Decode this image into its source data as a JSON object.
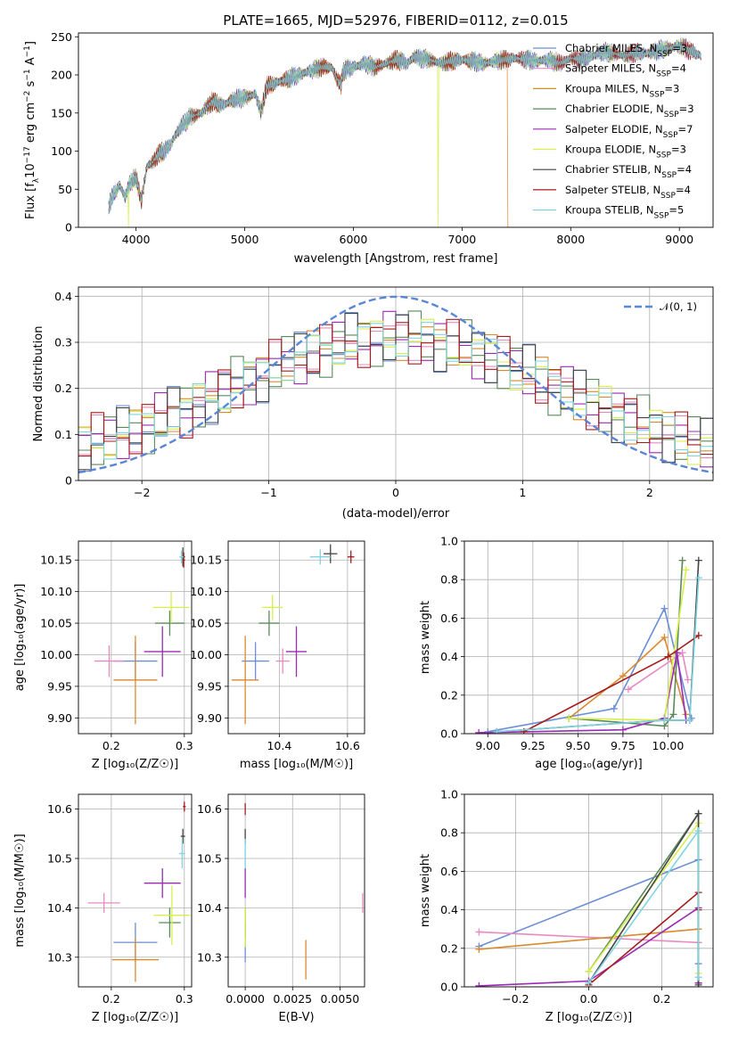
{
  "chart_data": [
    {
      "id": "spectrum",
      "type": "line",
      "title": "PLATE=1665, MJD=52976, FIBERID=0112, z=0.015",
      "xlabel": "wavelength [Angstrom, rest frame]",
      "ylabel_parts": [
        "Flux [f",
        "λ",
        "10",
        "−17",
        " erg cm",
        "−2",
        " s",
        "−1",
        " A",
        "−1",
        "]"
      ],
      "xlim": [
        3470,
        9310
      ],
      "ylim": [
        0,
        255
      ],
      "xticks": [
        4000,
        5000,
        6000,
        7000,
        8000,
        9000
      ],
      "yticks": [
        0,
        50,
        100,
        150,
        200,
        250
      ],
      "legend_position": "upper-right",
      "series": [
        {
          "name": "Chabrier MILES, N",
          "sub": "SSP",
          "suffix": "=3",
          "color": "#6a8fd6"
        },
        {
          "name": "Salpeter MILES, N",
          "sub": "SSP",
          "suffix": "=4",
          "color": "#e88ac1"
        },
        {
          "name": "Kroupa MILES, N",
          "sub": "SSP",
          "suffix": "=3",
          "color": "#d98a2e"
        },
        {
          "name": "Chabrier ELODIE, N",
          "sub": "SSP",
          "suffix": "=3",
          "color": "#5a8a5a"
        },
        {
          "name": "Salpeter ELODIE, N",
          "sub": "SSP",
          "suffix": "=7",
          "color": "#9b2ab5"
        },
        {
          "name": "Kroupa ELODIE, N",
          "sub": "SSP",
          "suffix": "=3",
          "color": "#d8ee4a"
        },
        {
          "name": "Chabrier STELIB, N",
          "sub": "SSP",
          "suffix": "=4",
          "color": "#444444"
        },
        {
          "name": "Salpeter STELIB, N",
          "sub": "SSP",
          "suffix": "=4",
          "color": "#a51c1c"
        },
        {
          "name": "Kroupa STELIB, N",
          "sub": "SSP",
          "suffix": "=5",
          "color": "#7fd4e0"
        }
      ],
      "spectrum_x": [
        3750,
        3800,
        3850,
        3900,
        3950,
        4000,
        4050,
        4100,
        4150,
        4200,
        4300,
        4400,
        4500,
        4600,
        4700,
        4800,
        4900,
        5000,
        5100,
        5150,
        5200,
        5300,
        5400,
        5500,
        5600,
        5700,
        5800,
        5850,
        5890,
        5900,
        6000,
        6100,
        6200,
        6300,
        6400,
        6500,
        6563,
        6600,
        6700,
        6800,
        6900,
        7000,
        7100,
        7200,
        7300,
        7400,
        7500,
        7600,
        7700,
        7800,
        7900,
        8000,
        8100,
        8200,
        8300,
        8400,
        8500,
        8600,
        8700,
        8800,
        8900,
        9000,
        9100,
        9200
      ],
      "spectrum_y": [
        30,
        45,
        55,
        40,
        60,
        65,
        35,
        80,
        85,
        95,
        105,
        130,
        145,
        150,
        165,
        160,
        168,
        170,
        175,
        150,
        185,
        190,
        195,
        200,
        205,
        210,
        210,
        195,
        185,
        205,
        210,
        215,
        210,
        215,
        220,
        215,
        225,
        222,
        220,
        215,
        218,
        220,
        218,
        215,
        218,
        220,
        222,
        220,
        218,
        220,
        215,
        222,
        220,
        225,
        230,
        228,
        225,
        230,
        228,
        232,
        235,
        238,
        232,
        225
      ],
      "cutoffs": [
        {
          "x": 3930,
          "series": 5
        },
        {
          "x": 6780,
          "series": 5
        },
        {
          "x": 7420,
          "series": 2
        }
      ]
    },
    {
      "id": "residuals",
      "type": "histogram",
      "xlabel": "(data-model)/error",
      "ylabel": "Normed distribution",
      "xlim": [
        -2.5,
        2.5
      ],
      "ylim": [
        0,
        0.42
      ],
      "xticks": [
        -2,
        -1,
        0,
        1,
        2
      ],
      "yticks": [
        0.0,
        0.1,
        0.2,
        0.3,
        0.4
      ],
      "legend": {
        "label": "𝒩(0, 1)",
        "position": "upper-right"
      },
      "gaussian_color": "#5b86d8",
      "bin_width": 0.1
    },
    {
      "id": "age_vs_Z",
      "type": "errorbar",
      "xlabel": "Z [log₁₀(Z/Z☉)]",
      "ylabel": "age  [log₁₀(age/yr)]",
      "xlim": [
        0.155,
        0.31
      ],
      "ylim": [
        9.875,
        10.18
      ],
      "xticks": [
        0.2,
        0.3
      ],
      "xtick_labels": [
        "0.2",
        "0.3"
      ],
      "yticks": [
        9.9,
        9.95,
        10.0,
        10.05,
        10.1,
        10.15
      ],
      "ytick_labels": [
        "9.90",
        "9.95",
        "10.00",
        "10.05",
        "10.10",
        "10.15"
      ],
      "points": [
        {
          "x": 0.233,
          "xerr": 0.03,
          "y": 9.99,
          "yerr": 0.03,
          "color": "#6a8fd6"
        },
        {
          "x": 0.197,
          "xerr": 0.02,
          "y": 9.99,
          "yerr": 0.025,
          "color": "#e88ac1"
        },
        {
          "x": 0.233,
          "xerr": 0.03,
          "y": 9.96,
          "yerr": 0.07,
          "color": "#d98a2e"
        },
        {
          "x": 0.28,
          "xerr": 0.02,
          "y": 10.05,
          "yerr": 0.02,
          "color": "#5a8a5a"
        },
        {
          "x": 0.27,
          "xerr": 0.025,
          "y": 10.005,
          "yerr": 0.04,
          "color": "#9b2ab5"
        },
        {
          "x": 0.282,
          "xerr": 0.025,
          "y": 10.075,
          "yerr": 0.025,
          "color": "#d8ee4a"
        },
        {
          "x": 0.298,
          "xerr": 0.003,
          "y": 10.155,
          "yerr": 0.015,
          "color": "#444444"
        },
        {
          "x": 0.299,
          "xerr": 0.002,
          "y": 10.15,
          "yerr": 0.012,
          "color": "#a51c1c"
        },
        {
          "x": 0.296,
          "xerr": 0.003,
          "y": 10.155,
          "yerr": 0.01,
          "color": "#7fd4e0"
        }
      ]
    },
    {
      "id": "age_vs_mass",
      "type": "errorbar",
      "xlabel": "mass [log₁₀(M/M☉)]",
      "xlim": [
        10.25,
        10.65
      ],
      "ylim": [
        9.875,
        10.18
      ],
      "xticks": [
        10.4,
        10.6
      ],
      "xtick_labels": [
        "10.4",
        "10.6"
      ],
      "yticks": [
        9.9,
        9.95,
        10.0,
        10.05,
        10.1,
        10.15
      ],
      "ytick_labels": [
        "9.90",
        "9.95",
        "10.00",
        "10.05",
        "10.10",
        "10.15"
      ],
      "points": [
        {
          "x": 10.33,
          "xerr": 0.04,
          "y": 9.99,
          "yerr": 0.03,
          "color": "#6a8fd6"
        },
        {
          "x": 10.41,
          "xerr": 0.02,
          "y": 9.99,
          "yerr": 0.02,
          "color": "#e88ac1"
        },
        {
          "x": 10.3,
          "xerr": 0.04,
          "y": 9.96,
          "yerr": 0.07,
          "color": "#d98a2e"
        },
        {
          "x": 10.37,
          "xerr": 0.03,
          "y": 10.05,
          "yerr": 0.02,
          "color": "#5a8a5a"
        },
        {
          "x": 10.45,
          "xerr": 0.03,
          "y": 10.005,
          "yerr": 0.04,
          "color": "#9b2ab5"
        },
        {
          "x": 10.38,
          "xerr": 0.03,
          "y": 10.075,
          "yerr": 0.02,
          "color": "#d8ee4a"
        },
        {
          "x": 10.55,
          "xerr": 0.02,
          "y": 10.16,
          "yerr": 0.015,
          "color": "#444444"
        },
        {
          "x": 10.61,
          "xerr": 0.01,
          "y": 10.155,
          "yerr": 0.01,
          "color": "#a51c1c"
        },
        {
          "x": 10.52,
          "xerr": 0.03,
          "y": 10.155,
          "yerr": 0.012,
          "color": "#7fd4e0"
        }
      ]
    },
    {
      "id": "mw_vs_age",
      "type": "line",
      "xlabel": "age  [log₁₀(age/yr)]",
      "ylabel": "mass weight",
      "xlim": [
        8.87,
        10.25
      ],
      "ylim": [
        0,
        1.0
      ],
      "xticks": [
        9.0,
        9.25,
        9.5,
        9.75,
        10.0
      ],
      "xtick_labels": [
        "9.00",
        "9.25",
        "9.50",
        "9.75",
        "10.00"
      ],
      "yticks": [
        0,
        0.2,
        0.4,
        0.6,
        0.8,
        1.0
      ],
      "ytick_labels": [
        "0.0",
        "0.2",
        "0.4",
        "0.6",
        "0.8",
        "1.0"
      ],
      "series": [
        {
          "color": "#6a8fd6",
          "x": [
            9.0,
            9.7,
            9.98,
            10.13
          ],
          "y": [
            0.01,
            0.13,
            0.65,
            0.08
          ]
        },
        {
          "color": "#e88ac1",
          "x": [
            9.78,
            10.08,
            10.11
          ],
          "y": [
            0.23,
            0.42,
            0.28
          ]
        },
        {
          "color": "#d98a2e",
          "x": [
            9.45,
            9.75,
            9.98,
            10.1
          ],
          "y": [
            0.08,
            0.3,
            0.5,
            0.1
          ]
        },
        {
          "color": "#5a8a5a",
          "x": [
            9.45,
            9.98,
            10.03,
            10.08
          ],
          "y": [
            0.08,
            0.04,
            0.1,
            0.9
          ]
        },
        {
          "color": "#9b2ab5",
          "x": [
            8.95,
            9.75,
            9.98,
            10.05,
            10.1
          ],
          "y": [
            0.005,
            0.02,
            0.08,
            0.42,
            0.07
          ]
        },
        {
          "color": "#d8ee4a",
          "x": [
            9.45,
            9.98,
            10.1
          ],
          "y": [
            0.08,
            0.07,
            0.85
          ]
        },
        {
          "color": "#444444",
          "x": [
            9.05,
            9.98,
            10.12,
            10.17
          ],
          "y": [
            0.01,
            0.07,
            0.07,
            0.9
          ]
        },
        {
          "color": "#a51c1c",
          "x": [
            9.2,
            10.0,
            10.17
          ],
          "y": [
            0.01,
            0.4,
            0.51
          ]
        },
        {
          "color": "#7fd4e0",
          "x": [
            9.05,
            9.98,
            10.12,
            10.17
          ],
          "y": [
            0.01,
            0.07,
            0.07,
            0.81
          ]
        }
      ]
    },
    {
      "id": "mass_vs_Z",
      "type": "errorbar",
      "xlabel": "Z [log₁₀(Z/Z☉)]",
      "ylabel": "mass [log₁₀(M/M☉)]",
      "xlim": [
        0.155,
        0.31
      ],
      "ylim": [
        10.24,
        10.63
      ],
      "xticks": [
        0.2,
        0.3
      ],
      "xtick_labels": [
        "0.2",
        "0.3"
      ],
      "yticks": [
        10.3,
        10.4,
        10.5,
        10.6
      ],
      "ytick_labels": [
        "10.3",
        "10.4",
        "10.5",
        "10.6"
      ],
      "points": [
        {
          "x": 0.233,
          "xerr": 0.03,
          "y": 10.33,
          "yerr": 0.04,
          "color": "#6a8fd6"
        },
        {
          "x": 0.19,
          "xerr": 0.022,
          "y": 10.41,
          "yerr": 0.02,
          "color": "#e88ac1"
        },
        {
          "x": 0.233,
          "xerr": 0.032,
          "y": 10.295,
          "yerr": 0.045,
          "color": "#d98a2e"
        },
        {
          "x": 0.28,
          "xerr": 0.015,
          "y": 10.37,
          "yerr": 0.03,
          "color": "#5a8a5a"
        },
        {
          "x": 0.27,
          "xerr": 0.025,
          "y": 10.45,
          "yerr": 0.03,
          "color": "#9b2ab5"
        },
        {
          "x": 0.283,
          "xerr": 0.025,
          "y": 10.385,
          "yerr": 0.06,
          "color": "#d8ee4a"
        },
        {
          "x": 0.298,
          "xerr": 0.003,
          "y": 10.545,
          "yerr": 0.015,
          "color": "#444444"
        },
        {
          "x": 0.3,
          "xerr": 0.002,
          "y": 10.605,
          "yerr": 0.01,
          "color": "#a51c1c"
        },
        {
          "x": 0.297,
          "xerr": 0.004,
          "y": 10.51,
          "yerr": 0.03,
          "color": "#7fd4e0"
        }
      ]
    },
    {
      "id": "mass_vs_ebv",
      "type": "errorbar",
      "xlabel": "E(B-V)",
      "xlim": [
        -0.0009,
        0.0063
      ],
      "ylim": [
        10.24,
        10.63
      ],
      "xticks": [
        0.0,
        0.0025,
        0.005
      ],
      "xtick_labels": [
        "0.0000",
        "0.0025",
        "0.0050"
      ],
      "yticks": [
        10.3,
        10.4,
        10.5,
        10.6
      ],
      "ytick_labels": [
        "10.3",
        "10.4",
        "10.5",
        "10.6"
      ],
      "points": [
        {
          "x": 0.0,
          "xerr": 0.0,
          "y": 10.33,
          "yerr": 0.04,
          "color": "#6a8fd6"
        },
        {
          "x": 0.0062,
          "xerr": 0.0,
          "y": 10.41,
          "yerr": 0.02,
          "color": "#e88ac1"
        },
        {
          "x": 0.0032,
          "xerr": 0.0,
          "y": 10.295,
          "yerr": 0.04,
          "color": "#d98a2e"
        },
        {
          "x": 0.0,
          "xerr": 0.0,
          "y": 10.37,
          "yerr": 0.03,
          "color": "#5a8a5a"
        },
        {
          "x": 0.0,
          "xerr": 0.0,
          "y": 10.45,
          "yerr": 0.03,
          "color": "#9b2ab5"
        },
        {
          "x": 0.0,
          "xerr": 0.0,
          "y": 10.36,
          "yerr": 0.04,
          "color": "#d8ee4a"
        },
        {
          "x": 0.0,
          "xerr": 0.0,
          "y": 10.545,
          "yerr": 0.015,
          "color": "#444444"
        },
        {
          "x": 0.0,
          "xerr": 0.0,
          "y": 10.6,
          "yerr": 0.012,
          "color": "#a51c1c"
        },
        {
          "x": 0.0,
          "xerr": 0.0,
          "y": 10.51,
          "yerr": 0.03,
          "color": "#7fd4e0"
        }
      ]
    },
    {
      "id": "mw_vs_Z",
      "type": "line",
      "xlabel": "Z [log₁₀(Z/Z☉)]",
      "ylabel": "mass weight",
      "xlim": [
        -0.34,
        0.34
      ],
      "ylim": [
        0,
        1.0
      ],
      "xticks": [
        -0.2,
        0.0,
        0.2
      ],
      "xtick_labels": [
        "−0.2",
        "0.0",
        "0.2"
      ],
      "yticks": [
        0,
        0.2,
        0.4,
        0.6,
        0.8,
        1.0
      ],
      "ytick_labels": [
        "0.0",
        "0.2",
        "0.4",
        "0.6",
        "0.8",
        "1.0"
      ],
      "series": [
        {
          "color": "#6a8fd6",
          "x": [
            -0.3,
            0.3,
            0.3
          ],
          "y": [
            0.21,
            0.66,
            0.12
          ]
        },
        {
          "color": "#e88ac1",
          "x": [
            -0.3,
            0.3
          ],
          "y": [
            0.285,
            0.23
          ]
        },
        {
          "color": "#d98a2e",
          "x": [
            -0.3,
            0.3
          ],
          "y": [
            0.195,
            0.3
          ]
        },
        {
          "color": "#5a8a5a",
          "x": [
            0.0,
            0.3,
            0.3
          ],
          "y": [
            0.08,
            0.9,
            0.02
          ]
        },
        {
          "color": "#9b2ab5",
          "x": [
            -0.3,
            0.0,
            0.3,
            0.3
          ],
          "y": [
            0.005,
            0.03,
            0.41,
            0.02
          ]
        },
        {
          "color": "#d8ee4a",
          "x": [
            0.0,
            0.3,
            0.3
          ],
          "y": [
            0.08,
            0.85,
            0.07
          ]
        },
        {
          "color": "#444444",
          "x": [
            0.0,
            0.3,
            0.3
          ],
          "y": [
            0.02,
            0.9,
            0.01
          ]
        },
        {
          "color": "#a51c1c",
          "x": [
            0.0,
            0.3,
            0.3
          ],
          "y": [
            0.01,
            0.49,
            0.4
          ]
        },
        {
          "color": "#7fd4e0",
          "x": [
            0.0,
            0.3,
            0.3
          ],
          "y": [
            0.02,
            0.81,
            0.05
          ]
        }
      ]
    }
  ]
}
